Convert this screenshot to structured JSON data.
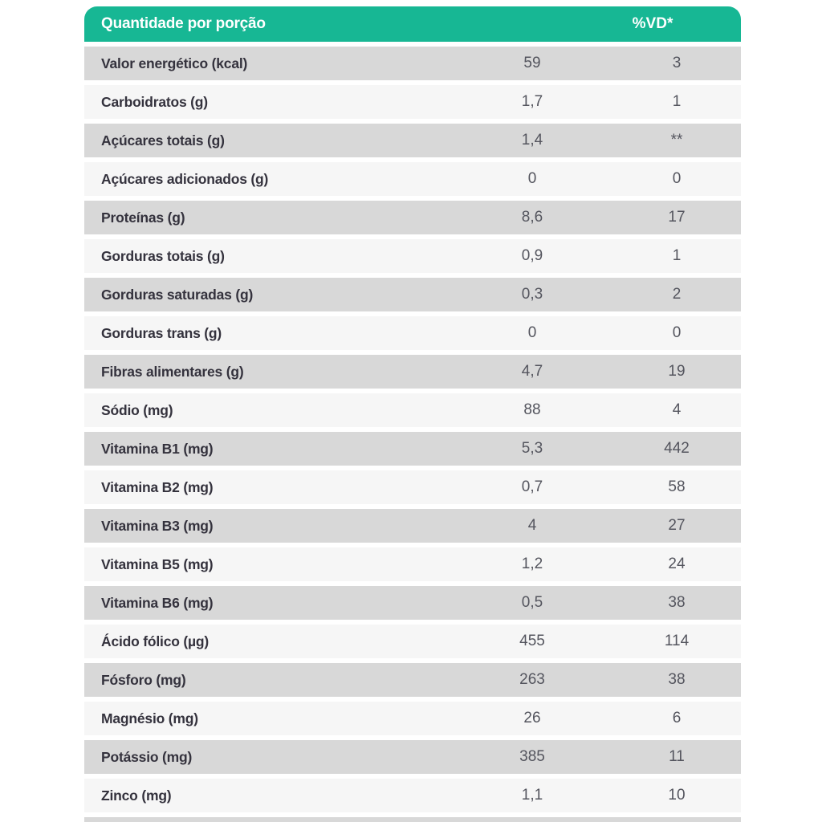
{
  "table": {
    "header": {
      "quantity_label": "Quantidade por porção",
      "vd_label": "%VD*"
    },
    "rows": [
      {
        "label": "Valor energético (kcal)",
        "value": "59",
        "vd": "3"
      },
      {
        "label": "Carboidratos (g)",
        "value": "1,7",
        "vd": "1"
      },
      {
        "label": "Açúcares totais (g)",
        "value": "1,4",
        "vd": "**"
      },
      {
        "label": "Açúcares adicionados (g)",
        "value": "0",
        "vd": "0"
      },
      {
        "label": "Proteínas (g)",
        "value": "8,6",
        "vd": "17"
      },
      {
        "label": "Gorduras totais (g)",
        "value": "0,9",
        "vd": "1"
      },
      {
        "label": "Gorduras saturadas (g)",
        "value": "0,3",
        "vd": "2"
      },
      {
        "label": "Gorduras trans (g)",
        "value": "0",
        "vd": "0"
      },
      {
        "label": "Fibras alimentares (g)",
        "value": "4,7",
        "vd": "19"
      },
      {
        "label": "Sódio (mg)",
        "value": "88",
        "vd": "4"
      },
      {
        "label": "Vitamina B1 (mg)",
        "value": "5,3",
        "vd": "442"
      },
      {
        "label": "Vitamina B2 (mg)",
        "value": "0,7",
        "vd": "58"
      },
      {
        "label": "Vitamina B3 (mg)",
        "value": "4",
        "vd": "27"
      },
      {
        "label": "Vitamina B5 (mg)",
        "value": "1,2",
        "vd": "24"
      },
      {
        "label": "Vitamina B6 (mg)",
        "value": "0,5",
        "vd": "38"
      },
      {
        "label": "Ácido fólico (µg)",
        "value": "455",
        "vd": "114"
      },
      {
        "label": "Fósforo (mg)",
        "value": "263",
        "vd": "38"
      },
      {
        "label": "Magnésio (mg)",
        "value": "26",
        "vd": "6"
      },
      {
        "label": "Potássio (mg)",
        "value": "385",
        "vd": "11"
      },
      {
        "label": "Zinco (mg)",
        "value": "1,1",
        "vd": "10"
      }
    ],
    "colors": {
      "header_teal": "#17b794",
      "row_gray": "#d8d8d8",
      "row_light": "#f6f6f6",
      "label_text": "#34323d",
      "value_text": "#54555e",
      "header_text": "#ffffff",
      "page_background": "#ffffff"
    }
  }
}
